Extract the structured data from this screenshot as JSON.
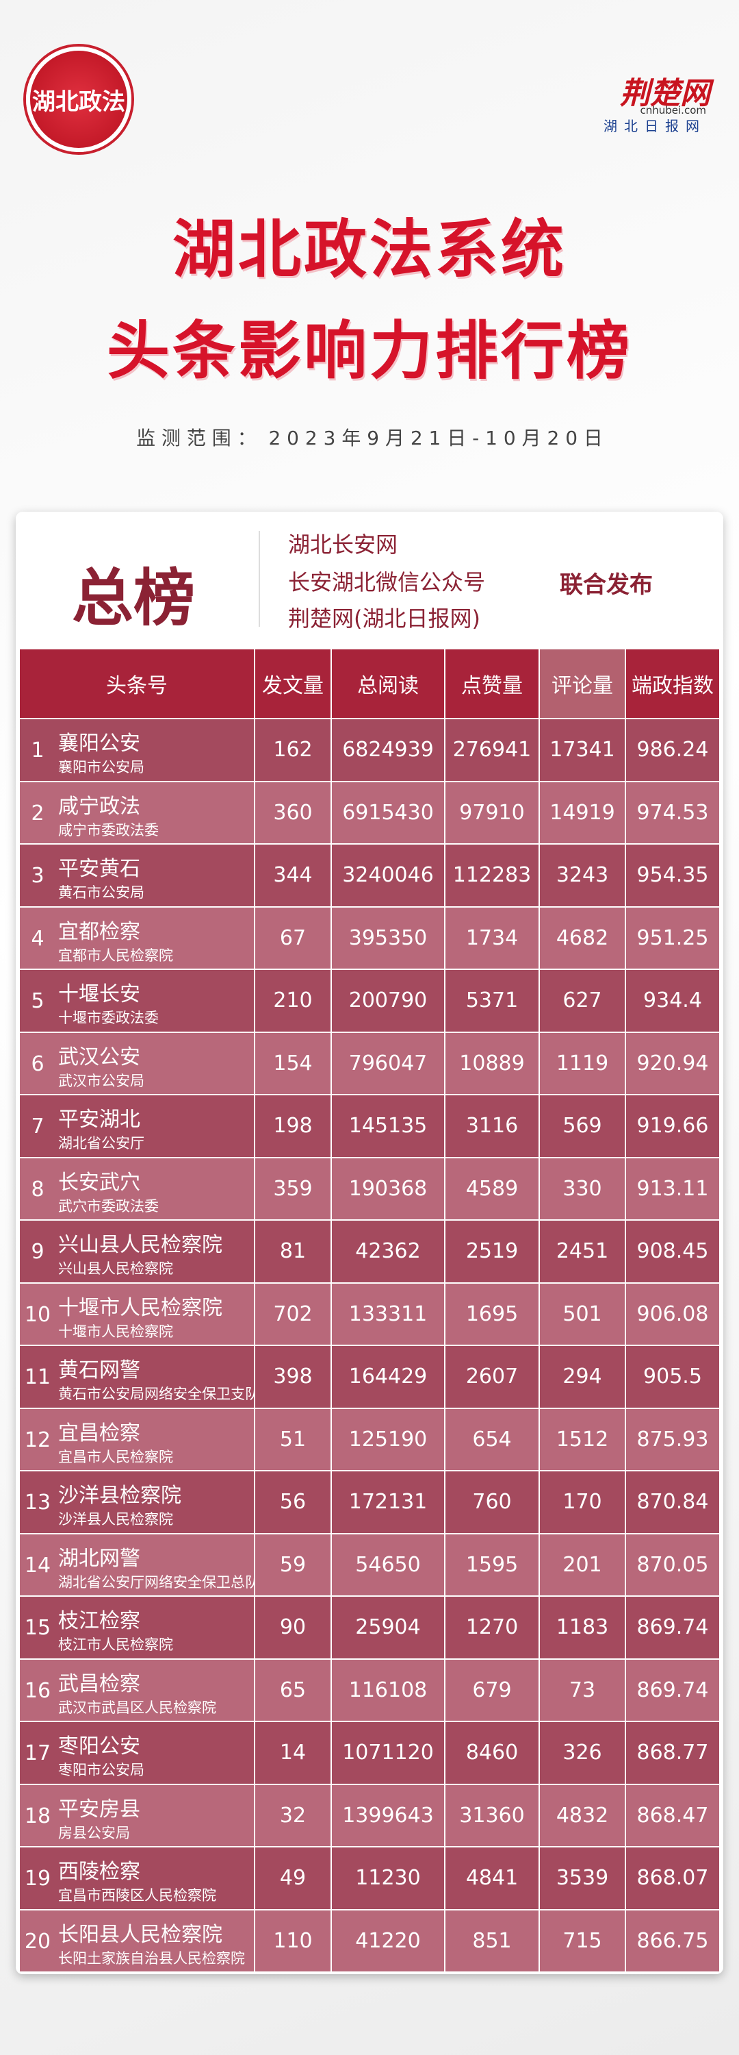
{
  "header": {
    "logo": "湖北政法",
    "brand": "荆楚网",
    "brand_site": "cnhubei.com",
    "brand_sub": "湖北日报网"
  },
  "title": {
    "line1": "湖北政法系统",
    "line2": "头条影响力排行榜",
    "period": "监 测 范 围 ：  2 0 2 3 年 9 月 2 1 日 - 1 0 月 2 0 日"
  },
  "card": {
    "label": "总榜",
    "publishers": [
      "湖北长安网",
      "长安湖北微信公众号",
      "荆楚网(湖北日报网)"
    ],
    "joint": "联合发布"
  },
  "table": {
    "columns": [
      "头条号",
      "发文量",
      "总阅读",
      "点赞量",
      "评论量",
      "端政指数"
    ],
    "rows": [
      [
        "1",
        "襄阳公安",
        "襄阳市公安局",
        "162",
        "6824939",
        "276941",
        "17341",
        "986.24"
      ],
      [
        "2",
        "咸宁政法",
        "咸宁市委政法委",
        "360",
        "6915430",
        "97910",
        "14919",
        "974.53"
      ],
      [
        "3",
        "平安黄石",
        "黄石市公安局",
        "344",
        "3240046",
        "112283",
        "3243",
        "954.35"
      ],
      [
        "4",
        "宜都检察",
        "宜都市人民检察院",
        "67",
        "395350",
        "1734",
        "4682",
        "951.25"
      ],
      [
        "5",
        "十堰长安",
        "十堰市委政法委",
        "210",
        "200790",
        "5371",
        "627",
        "934.4"
      ],
      [
        "6",
        "武汉公安",
        "武汉市公安局",
        "154",
        "796047",
        "10889",
        "1119",
        "920.94"
      ],
      [
        "7",
        "平安湖北",
        "湖北省公安厅",
        "198",
        "145135",
        "3116",
        "569",
        "919.66"
      ],
      [
        "8",
        "长安武穴",
        "武穴市委政法委",
        "359",
        "190368",
        "4589",
        "330",
        "913.11"
      ],
      [
        "9",
        "兴山县人民检察院",
        "兴山县人民检察院",
        "81",
        "42362",
        "2519",
        "2451",
        "908.45"
      ],
      [
        "10",
        "十堰市人民检察院",
        "十堰市人民检察院",
        "702",
        "133311",
        "1695",
        "501",
        "906.08"
      ],
      [
        "11",
        "黄石网警",
        "黄石市公安局网络安全保卫支队",
        "398",
        "164429",
        "2607",
        "294",
        "905.5"
      ],
      [
        "12",
        "宜昌检察",
        "宜昌市人民检察院",
        "51",
        "125190",
        "654",
        "1512",
        "875.93"
      ],
      [
        "13",
        "沙洋县检察院",
        "沙洋县人民检察院",
        "56",
        "172131",
        "760",
        "170",
        "870.84"
      ],
      [
        "14",
        "湖北网警",
        "湖北省公安厅网络安全保卫总队",
        "59",
        "54650",
        "1595",
        "201",
        "870.05"
      ],
      [
        "15",
        "枝江检察",
        "枝江市人民检察院",
        "90",
        "25904",
        "1270",
        "1183",
        "869.74"
      ],
      [
        "16",
        "武昌检察",
        "武汉市武昌区人民检察院",
        "65",
        "116108",
        "679",
        "73",
        "869.74"
      ],
      [
        "17",
        "枣阳公安",
        "枣阳市公安局",
        "14",
        "1071120",
        "8460",
        "326",
        "868.77"
      ],
      [
        "18",
        "平安房县",
        "房县公安局",
        "32",
        "1399643",
        "31360",
        "4832",
        "868.47"
      ],
      [
        "19",
        "西陵检察",
        "宜昌市西陵区人民检察院",
        "49",
        "11230",
        "4841",
        "3539",
        "868.07"
      ],
      [
        "20",
        "长阳县人民检察院",
        "长阳土家族自治县人民检察院",
        "110",
        "41220",
        "851",
        "715",
        "866.75"
      ]
    ]
  }
}
